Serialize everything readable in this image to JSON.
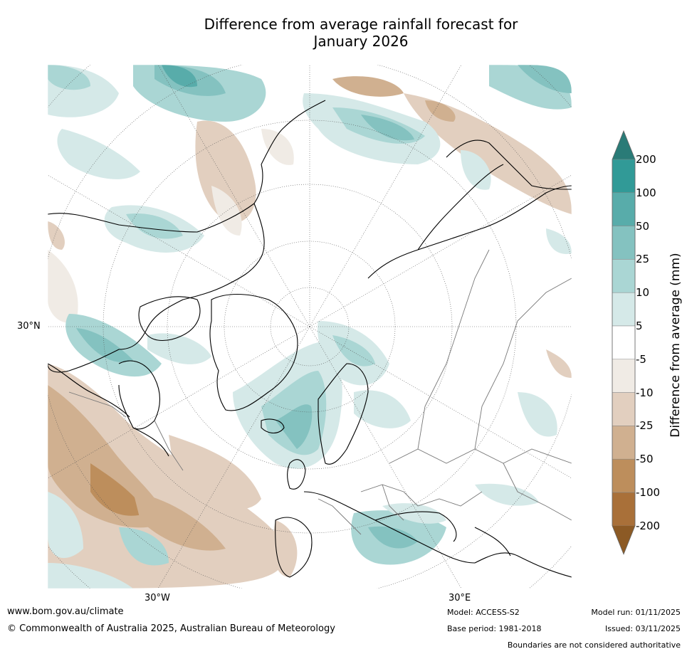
{
  "title_line1": "Difference from average rainfall forecast for",
  "title_line2": "January 2026",
  "graticule": {
    "lat_label": "30°N",
    "lon_labels": [
      "30°W",
      "30°E"
    ]
  },
  "colorbar": {
    "label": "Difference from average (mm)",
    "ticks": [
      "200",
      "100",
      "50",
      "25",
      "10",
      "5",
      "-5",
      "-10",
      "-25",
      "-50",
      "-100",
      "-200"
    ],
    "colors": [
      "#2a7b77",
      "#319a97",
      "#58acaa",
      "#84c2c0",
      "#aad6d4",
      "#d5e9e8",
      "#ffffff",
      "#f0ebe5",
      "#e2cfbf",
      "#d0b090",
      "#bd8e5c",
      "#a97039",
      "#8c5a25"
    ]
  },
  "footer": {
    "website": "www.bom.gov.au/climate",
    "copyright": "© Commonwealth of Australia 2025, Australian Bureau of Meteorology",
    "model": "Model: ACCESS-S2",
    "base_period": "Base period: 1981-2018",
    "model_run": "Model run: 01/11/2025",
    "issued": "Issued: 03/11/2025",
    "disclaimer": "Boundaries are not considered authoritative"
  }
}
